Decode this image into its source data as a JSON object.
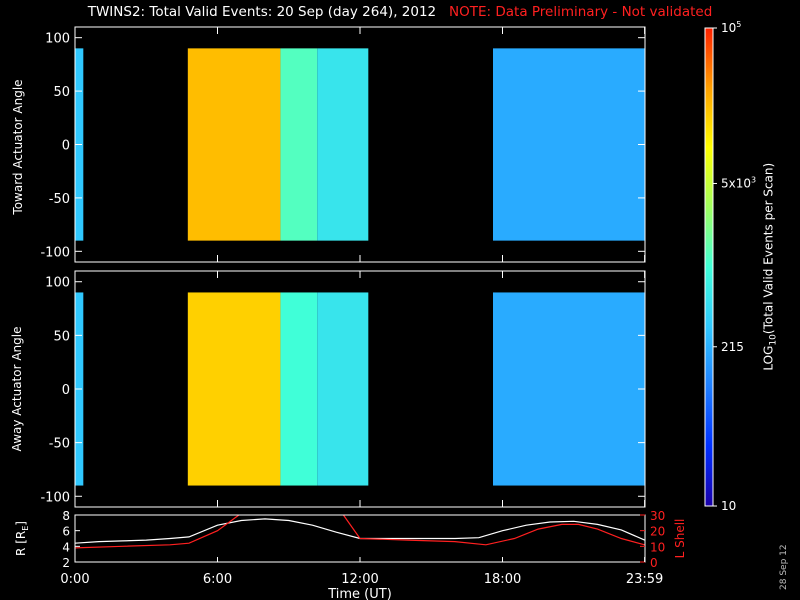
{
  "title": {
    "main": "TWINS2: Total Valid Events: 20 Sep (day 264), 2012",
    "note": "NOTE: Data Preliminary - Not validated",
    "note_color": "#ff2020"
  },
  "date_stamp": "28 Sep 12",
  "colorbar": {
    "label": "LOG10(Total Valid Events per Scan)",
    "label_parts": {
      "pre": "LOG",
      "sub": "10",
      "post": "(Total Valid Events per Scan)"
    },
    "scale": "log",
    "range": [
      10,
      100000
    ],
    "ticks": [
      {
        "value": 10,
        "text": "10"
      },
      {
        "value": 215,
        "text": "215"
      },
      {
        "value": 5000,
        "text": "5x10",
        "sup": "3"
      },
      {
        "value": 100000,
        "text": "10",
        "sup": "5"
      }
    ],
    "colors": [
      "#1a00a8",
      "#0030ff",
      "#1f7fff",
      "#30c8ff",
      "#40ffd8",
      "#a0ff60",
      "#ffff00",
      "#ffa000",
      "#ff2000"
    ]
  },
  "chart_data": [
    {
      "type": "heatmap",
      "name": "toward",
      "ylabel": "Toward Actuator Angle",
      "ylim": [
        -110,
        110
      ],
      "yticks": [
        -100,
        -50,
        0,
        50,
        100
      ],
      "xlim": [
        0,
        24
      ],
      "xticks": [
        0,
        6,
        12,
        18,
        23.983
      ],
      "bands": [
        {
          "x": [
            0.0,
            0.35
          ],
          "y": [
            -90,
            90
          ],
          "level": 2.5
        },
        {
          "x": [
            4.75,
            8.65
          ],
          "y": [
            -90,
            90
          ],
          "level": 4.35
        },
        {
          "x": [
            8.65,
            10.2
          ],
          "y": [
            -90,
            90
          ],
          "level": 3.1
        },
        {
          "x": [
            10.2,
            12.35
          ],
          "y": [
            -90,
            90
          ],
          "level": 2.75
        },
        {
          "x": [
            17.6,
            23.983
          ],
          "y": [
            -90,
            90
          ],
          "level": 2.3
        }
      ]
    },
    {
      "type": "heatmap",
      "name": "away",
      "ylabel": "Away Actuator Angle",
      "ylim": [
        -110,
        110
      ],
      "yticks": [
        -100,
        -50,
        0,
        50,
        100
      ],
      "xlim": [
        0,
        24
      ],
      "xticks": [
        0,
        6,
        12,
        18,
        23.983
      ],
      "bands": [
        {
          "x": [
            0.0,
            0.35
          ],
          "y": [
            -90,
            90
          ],
          "level": 2.5
        },
        {
          "x": [
            4.75,
            8.65
          ],
          "y": [
            -90,
            90
          ],
          "level": 4.25
        },
        {
          "x": [
            8.65,
            10.2
          ],
          "y": [
            -90,
            90
          ],
          "level": 3.0
        },
        {
          "x": [
            10.2,
            12.35
          ],
          "y": [
            -90,
            90
          ],
          "level": 2.75
        },
        {
          "x": [
            17.6,
            23.983
          ],
          "y": [
            -90,
            90
          ],
          "level": 2.3
        }
      ]
    },
    {
      "type": "line",
      "name": "orbit",
      "xlabel": "Time (UT)",
      "xlim": [
        0,
        24
      ],
      "xticks": [
        0,
        6,
        12,
        18,
        23.983
      ],
      "xticklabels": [
        "0:00",
        "6:00",
        "12:00",
        "18:00",
        "23:59"
      ],
      "ylabel_left": "R [RE]",
      "ylabel_left_parts": {
        "pre": "R [R",
        "sub": "E",
        "post": "]"
      },
      "ylim_left": [
        2,
        8
      ],
      "yticks_left": [
        2,
        4,
        6,
        8
      ],
      "ylabel_right": "L Shell",
      "ylim_right": [
        0,
        30
      ],
      "yticks_right": [
        0,
        10,
        20,
        30
      ],
      "series": [
        {
          "name": "R",
          "axis": "left",
          "color": "#ffffff",
          "x": [
            0,
            1,
            2,
            3,
            4,
            4.8,
            6,
            7,
            8,
            9,
            10,
            11,
            12,
            13,
            14,
            15,
            16,
            17,
            18,
            19,
            20,
            21,
            22,
            23,
            23.983
          ],
          "y": [
            4.4,
            4.6,
            4.7,
            4.8,
            5.0,
            5.2,
            6.7,
            7.3,
            7.5,
            7.3,
            6.7,
            5.8,
            5.0,
            5.0,
            5.0,
            5.0,
            5.0,
            5.1,
            6.0,
            6.7,
            7.1,
            7.2,
            6.8,
            6.1,
            4.8
          ]
        },
        {
          "name": "L Shell",
          "axis": "right",
          "color": "#ff2020",
          "x": [
            0,
            2,
            4,
            4.8,
            6,
            6.9,
            7.0,
            11.2,
            11.3,
            12,
            14,
            16,
            17.3,
            18.5,
            19.5,
            20.5,
            21.2,
            22,
            23,
            23.983
          ],
          "y": [
            9,
            10,
            11,
            12,
            20,
            30,
            null,
            null,
            30,
            15,
            14,
            13,
            11,
            15,
            21,
            24,
            24,
            21,
            15,
            11
          ]
        }
      ]
    }
  ]
}
